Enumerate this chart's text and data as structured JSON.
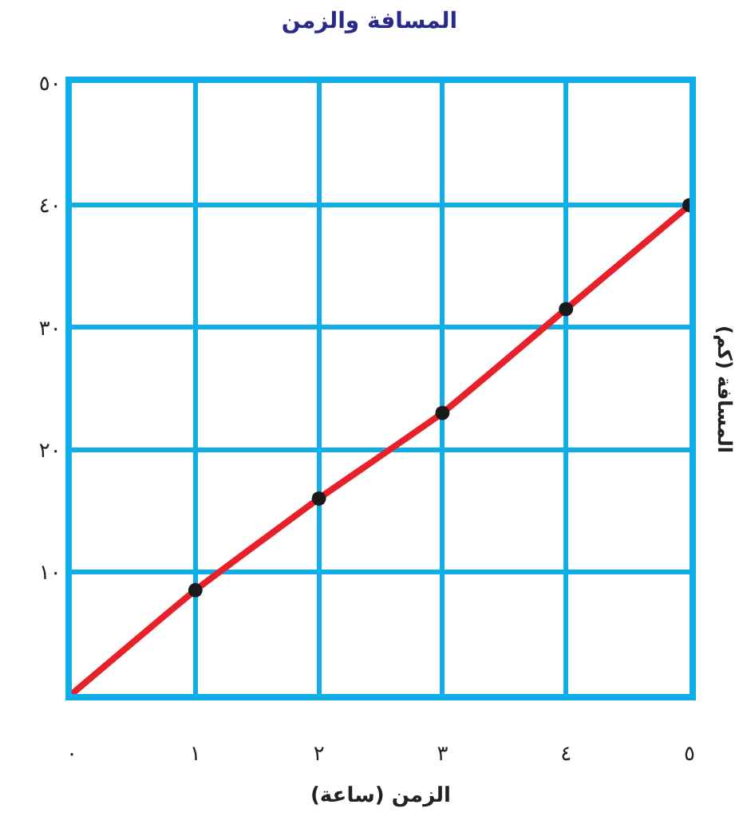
{
  "chart_data": {
    "type": "line",
    "title": "المسافة والزمن",
    "xlabel": "الزمن (ساعة)",
    "ylabel": "المسافة (كم)",
    "x": [
      0,
      1,
      2,
      3,
      4,
      5
    ],
    "series": [
      {
        "color": "#e8202a",
        "values": [
          0,
          8.5,
          16,
          23,
          31.5,
          40
        ],
        "marker": "none"
      },
      {
        "type": "scatter",
        "color": "#1a1a1a",
        "x": [
          1,
          2,
          3,
          4,
          5
        ],
        "values": [
          8.5,
          16,
          23,
          31.5,
          40
        ],
        "marker": "circle"
      }
    ],
    "xlim": [
      0,
      5
    ],
    "ylim": [
      0,
      50
    ],
    "xticks": [
      {
        "value": 0,
        "label": "٠"
      },
      {
        "value": 1,
        "label": "١"
      },
      {
        "value": 2,
        "label": "٢"
      },
      {
        "value": 3,
        "label": "٣"
      },
      {
        "value": 4,
        "label": "٤"
      },
      {
        "value": 5,
        "label": "٥"
      }
    ],
    "yticks": [
      {
        "value": 10,
        "label": "١٠"
      },
      {
        "value": 20,
        "label": "٢٠"
      },
      {
        "value": 30,
        "label": "٣٠"
      },
      {
        "value": 40,
        "label": "٤٠"
      },
      {
        "value": 50,
        "label": "٥٠"
      }
    ],
    "grid": true,
    "legend": false
  }
}
